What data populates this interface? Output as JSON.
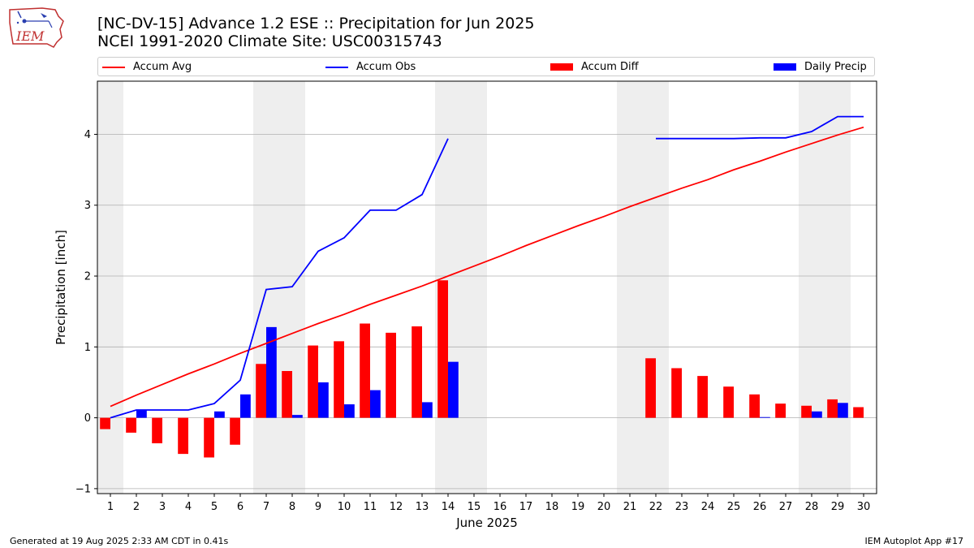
{
  "header": {
    "logo_text": "IEM",
    "title_line1": "[NC-DV-15] Advance 1.2 ESE :: Precipitation for Jun 2025",
    "title_line2": "NCEI 1991-2020 Climate Site: USC00315743"
  },
  "footer": {
    "generated": "Generated at 19 Aug 2025 2:33 AM CDT in 0.41s",
    "app": "IEM Autoplot App #17"
  },
  "colors": {
    "accum_avg": "#ff0000",
    "accum_obs": "#0000ff",
    "accum_diff": "#ff0000",
    "daily_precip": "#0000ff",
    "weekend_shade": "#eeeeee",
    "grid": "#b0b0b0"
  },
  "chart_data": {
    "type": "bar",
    "xlabel": "June 2025",
    "ylabel": "Precipitation [inch]",
    "xlim": [
      0.5,
      30.5
    ],
    "ylim": [
      -1.07,
      4.75
    ],
    "yticks": [
      -1,
      0,
      1,
      2,
      3,
      4
    ],
    "grid": "horizontal",
    "legend_position": "top",
    "days": [
      1,
      2,
      3,
      4,
      5,
      6,
      7,
      8,
      9,
      10,
      11,
      12,
      13,
      14,
      15,
      16,
      17,
      18,
      19,
      20,
      21,
      22,
      23,
      24,
      25,
      26,
      27,
      28,
      29,
      30
    ],
    "shaded_days": [
      1,
      7,
      8,
      14,
      15,
      21,
      22,
      28,
      29
    ],
    "series": [
      {
        "name": "Accum Avg",
        "kind": "line",
        "values": [
          0.16,
          0.32,
          0.47,
          0.62,
          0.76,
          0.91,
          1.05,
          1.19,
          1.33,
          1.46,
          1.6,
          1.73,
          1.86,
          2.0,
          2.14,
          2.28,
          2.43,
          2.57,
          2.71,
          2.84,
          2.98,
          3.11,
          3.24,
          3.36,
          3.5,
          3.62,
          3.75,
          3.87,
          3.99,
          4.1
        ]
      },
      {
        "name": "Accum Obs",
        "kind": "line",
        "values": [
          0.0,
          0.11,
          0.11,
          0.11,
          0.2,
          0.53,
          1.81,
          1.85,
          2.35,
          2.54,
          2.93,
          2.93,
          3.15,
          3.94,
          null,
          null,
          null,
          null,
          null,
          null,
          null,
          3.94,
          3.94,
          3.94,
          3.94,
          3.95,
          3.95,
          4.04,
          4.25,
          4.25
        ]
      },
      {
        "name": "Accum Diff",
        "kind": "bar",
        "values": [
          -0.16,
          -0.21,
          -0.36,
          -0.51,
          -0.56,
          -0.38,
          0.76,
          0.66,
          1.02,
          1.08,
          1.33,
          1.2,
          1.29,
          1.94,
          null,
          null,
          null,
          null,
          null,
          null,
          null,
          0.84,
          0.7,
          0.59,
          0.44,
          0.33,
          0.2,
          0.17,
          0.26,
          0.15
        ]
      },
      {
        "name": "Daily Precip",
        "kind": "bar",
        "values": [
          0.0,
          0.11,
          0.0,
          0.0,
          0.09,
          0.33,
          1.28,
          0.04,
          0.5,
          0.19,
          0.39,
          0.0,
          0.22,
          0.79,
          null,
          null,
          null,
          null,
          null,
          null,
          null,
          null,
          null,
          null,
          null,
          0.01,
          null,
          0.09,
          0.21,
          null
        ]
      }
    ]
  }
}
